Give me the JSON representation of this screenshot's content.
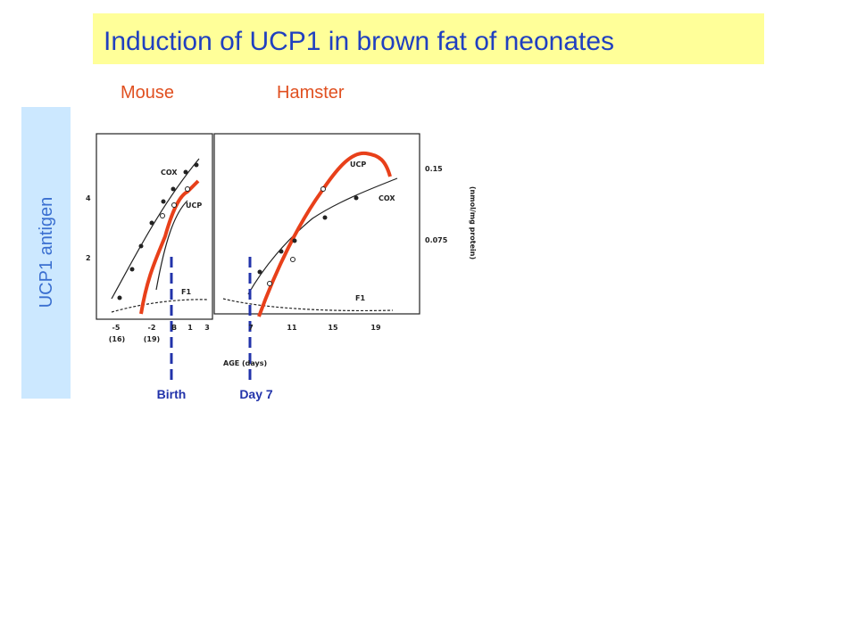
{
  "header": {
    "title": "Induction of UCP1 in brown fat of neonates"
  },
  "panels": {
    "left": "Mouse",
    "right": "Hamster"
  },
  "side_label": "UCP1 antigen",
  "figure": {
    "curve_labels": {
      "cox_left": "COX",
      "ucp_left": "UCP",
      "f1_left": "F1",
      "ucp_right": "UCP",
      "cox_right": "COX",
      "f1_right": "F1"
    },
    "left_y_ticks": [
      "4",
      "2"
    ],
    "right_y_ticks": [
      "0.15",
      "0.075"
    ],
    "right_axis_title": "(nmol/mg protein)",
    "left_x_ticks": [
      "-5",
      "-2",
      "B",
      "1",
      "3"
    ],
    "left_x_subticks": [
      "(16)",
      "(19)"
    ],
    "right_x_ticks": [
      "7",
      "11",
      "15",
      "19"
    ],
    "x_axis_title": "AGE (days)"
  },
  "markers": [
    {
      "label": "Birth"
    },
    {
      "label": "Day 7"
    }
  ]
}
